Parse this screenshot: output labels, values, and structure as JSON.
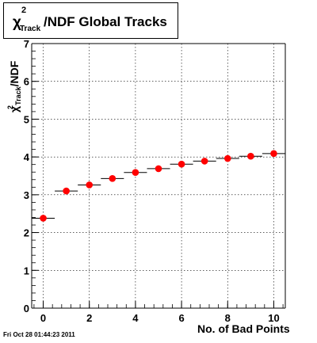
{
  "title": {
    "main": "χ",
    "sup": "2",
    "sub": "Track",
    "rest": "/NDF  Global Tracks"
  },
  "y_axis_label": {
    "main": "χ",
    "sup": "2",
    "sub": "Track",
    "rest": "/NDF"
  },
  "x_axis_label": "No. of Bad Points",
  "timestamp": "Fri Oct 28 01:44:23 2011",
  "colors": {
    "marker": "#ff0000",
    "axis": "#000000",
    "grid": "#000000",
    "background": "#ffffff"
  },
  "chart_data": {
    "type": "scatter",
    "x": [
      0,
      1,
      2,
      3,
      4,
      5,
      6,
      7,
      8,
      9,
      10
    ],
    "y": [
      2.38,
      3.1,
      3.26,
      3.43,
      3.59,
      3.69,
      3.81,
      3.89,
      3.96,
      4.02,
      4.09
    ],
    "x_bin_width": 1,
    "xlim": [
      -0.5,
      10.5
    ],
    "ylim": [
      0,
      7
    ],
    "x_ticks": [
      "0",
      "2",
      "4",
      "6",
      "8",
      "10"
    ],
    "y_ticks": [
      "0",
      "1",
      "2",
      "3",
      "4",
      "5",
      "6",
      "7"
    ],
    "grid": true,
    "xlabel": "No. of Bad Points",
    "ylabel": "χ2 Track /NDF",
    "title": "χ2 Track /NDF  Global Tracks"
  }
}
